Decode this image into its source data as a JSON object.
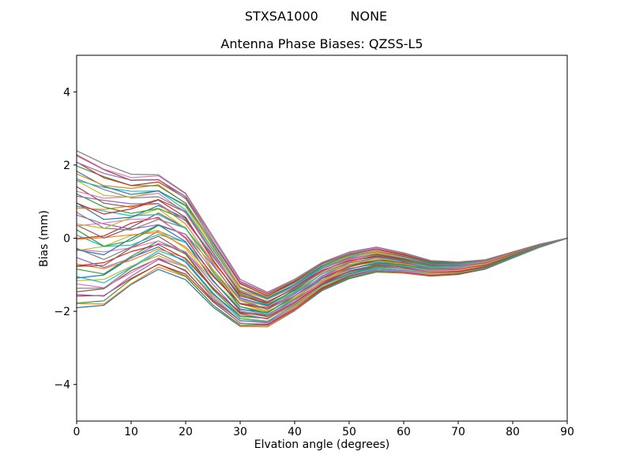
{
  "chart_data": {
    "type": "line",
    "suptitle": "STXSA1000        NONE",
    "title": "Antenna Phase Biases: QZSS-L5",
    "xlabel": "Elvation angle (degrees)",
    "ylabel": "Bias (mm)",
    "xlim": [
      0,
      90
    ],
    "ylim": [
      -5,
      5
    ],
    "xticks": [
      0,
      10,
      20,
      30,
      40,
      50,
      60,
      70,
      80,
      90
    ],
    "xtick_labels": [
      "0",
      "10",
      "20",
      "30",
      "40",
      "50",
      "60",
      "70",
      "80",
      "90"
    ],
    "yticks": [
      -4,
      -2,
      0,
      2,
      4
    ],
    "ytick_labels": [
      "−4",
      "−2",
      "0",
      "2",
      "4"
    ],
    "grid": false,
    "legend": "none",
    "x": [
      0,
      5,
      10,
      15,
      20,
      25,
      30,
      35,
      40,
      45,
      50,
      55,
      60,
      65,
      70,
      75,
      80,
      85,
      90
    ],
    "median": [
      0.5,
      0.3,
      0.4,
      0.6,
      0.2,
      -0.8,
      -1.7,
      -1.9,
      -1.5,
      -1.0,
      -0.7,
      -0.55,
      -0.65,
      -0.8,
      -0.8,
      -0.7,
      -0.45,
      -0.2,
      0.0
    ],
    "envelope_min": [
      -1.9,
      -1.86,
      -1.28,
      -0.84,
      -1.12,
      -1.88,
      -2.42,
      -2.43,
      -1.98,
      -1.43,
      -1.11,
      -0.93,
      -0.96,
      -1.04,
      -0.99,
      -0.84,
      -0.55,
      -0.25,
      0.0
    ],
    "envelope_max": [
      2.4,
      2.01,
      1.73,
      1.74,
      1.25,
      0.06,
      -1.13,
      -1.48,
      -1.12,
      -0.66,
      -0.38,
      -0.25,
      -0.4,
      -0.61,
      -0.65,
      -0.59,
      -0.37,
      -0.16,
      0.0
    ],
    "spread_decay": [
      1.0,
      0.9,
      0.7,
      0.6,
      0.55,
      0.45,
      0.3,
      0.22,
      0.2,
      0.18,
      0.17,
      0.16,
      0.13,
      0.1,
      0.08,
      0.06,
      0.04,
      0.02,
      0.0
    ],
    "series_count": 48,
    "series_offsets_range": [
      -2.4,
      1.9
    ],
    "palette": [
      "#1f77b4",
      "#ff7f0e",
      "#2ca02c",
      "#d62728",
      "#9467bd",
      "#8c564b",
      "#e377c2",
      "#7f7f7f",
      "#bcbd22",
      "#17becf"
    ]
  }
}
